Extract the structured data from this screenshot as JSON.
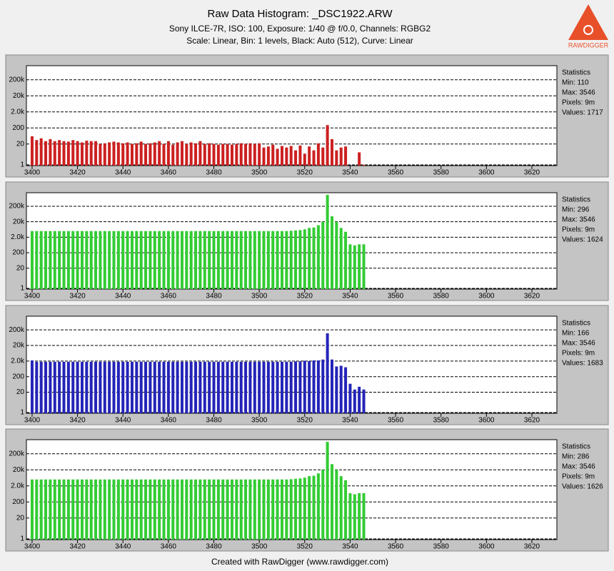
{
  "title": "Raw Data Histogram: _DSC1922.ARW",
  "subtitle": "Sony ILCE-7R, ISO: 100, Exposure: 1/40 @ f/0.0, Channels: RGBG2",
  "subtitle2": "Scale: Linear, Bin: 1 levels, Black: Auto (512), Curve: Linear",
  "footer": "Created with RawDigger (www.rawdigger.com)",
  "logo": "RAWDIGGER",
  "chart_data": [
    {
      "type": "bar",
      "log_y": true,
      "grid": true,
      "color": "#cc2020",
      "xlim": [
        3397.5,
        3631
      ],
      "xticks": [
        3400,
        3420,
        3440,
        3460,
        3480,
        3500,
        3520,
        3540,
        3560,
        3580,
        3600,
        3620
      ],
      "ylim": [
        0.9,
        1500000
      ],
      "yticks": [
        1,
        20,
        200,
        {
          "value": 2000,
          "label": "2.0k"
        },
        {
          "value": 20000,
          "label": "20k"
        },
        {
          "value": 200000,
          "label": "200k"
        }
      ],
      "stats": [
        "Statistics",
        "Min: 110",
        "Max: 3546",
        "Pixels: 9m",
        "Values: 1717"
      ],
      "x": [
        3400,
        3402,
        3404,
        3406,
        3408,
        3410,
        3412,
        3414,
        3416,
        3418,
        3420,
        3422,
        3424,
        3426,
        3428,
        3430,
        3432,
        3434,
        3436,
        3438,
        3440,
        3442,
        3444,
        3446,
        3448,
        3450,
        3452,
        3454,
        3456,
        3458,
        3460,
        3462,
        3464,
        3466,
        3468,
        3470,
        3472,
        3474,
        3476,
        3478,
        3480,
        3482,
        3484,
        3486,
        3488,
        3490,
        3492,
        3494,
        3496,
        3498,
        3500,
        3502,
        3504,
        3506,
        3508,
        3510,
        3512,
        3514,
        3516,
        3518,
        3520,
        3522,
        3524,
        3526,
        3528,
        3530,
        3532,
        3534,
        3536,
        3538,
        3544,
        3546
      ],
      "values": [
        60,
        35,
        45,
        30,
        40,
        30,
        35,
        30,
        28,
        35,
        30,
        25,
        32,
        30,
        30,
        20,
        22,
        25,
        28,
        25,
        22,
        25,
        20,
        22,
        28,
        20,
        22,
        25,
        30,
        20,
        30,
        18,
        25,
        30,
        20,
        25,
        22,
        30,
        20,
        22,
        20,
        18,
        20,
        20,
        18,
        20,
        22,
        20,
        22,
        20,
        22,
        12,
        14,
        18,
        10,
        15,
        12,
        15,
        8,
        16,
        5,
        14,
        8,
        22,
        12,
        300,
        40,
        8,
        12,
        14,
        6,
        1
      ]
    },
    {
      "type": "bar",
      "log_y": true,
      "grid": true,
      "color": "#33cc33",
      "xlim": [
        3397.5,
        3631
      ],
      "xticks": [
        3400,
        3420,
        3440,
        3460,
        3480,
        3500,
        3520,
        3540,
        3560,
        3580,
        3600,
        3620
      ],
      "ylim": [
        0.9,
        1500000
      ],
      "yticks": [
        1,
        20,
        200,
        {
          "value": 2000,
          "label": "2.0k"
        },
        {
          "value": 20000,
          "label": "20k"
        },
        {
          "value": 200000,
          "label": "200k"
        }
      ],
      "stats": [
        "Statistics",
        "Min: 296",
        "Max: 3546",
        "Pixels: 9m",
        "Values: 1624"
      ],
      "x": [
        3400,
        3402,
        3404,
        3406,
        3408,
        3410,
        3412,
        3414,
        3416,
        3418,
        3420,
        3422,
        3424,
        3426,
        3428,
        3430,
        3432,
        3434,
        3436,
        3438,
        3440,
        3442,
        3444,
        3446,
        3448,
        3450,
        3452,
        3454,
        3456,
        3458,
        3460,
        3462,
        3464,
        3466,
        3468,
        3470,
        3472,
        3474,
        3476,
        3478,
        3480,
        3482,
        3484,
        3486,
        3488,
        3490,
        3492,
        3494,
        3496,
        3498,
        3500,
        3502,
        3504,
        3506,
        3508,
        3510,
        3512,
        3514,
        3516,
        3518,
        3520,
        3522,
        3524,
        3526,
        3528,
        3530,
        3532,
        3534,
        3536,
        3538,
        3540,
        3542,
        3544,
        3546
      ],
      "values": [
        5000,
        5000,
        5000,
        5000,
        5000,
        5000,
        5000,
        5000,
        5000,
        5000,
        5000,
        5000,
        5000,
        5000,
        5000,
        5000,
        5000,
        5000,
        5000,
        5000,
        5000,
        5000,
        5000,
        5000,
        5000,
        5000,
        5000,
        5000,
        5000,
        5000,
        5000,
        5000,
        5000,
        5000,
        5000,
        5000,
        5000,
        5000,
        5000,
        5000,
        5000,
        5000,
        5000,
        5000,
        5000,
        5000,
        5000,
        5000,
        5000,
        5000,
        5000,
        5000,
        5000,
        5000,
        5000,
        5000,
        5000,
        5200,
        5500,
        5800,
        6500,
        8000,
        8500,
        12000,
        20000,
        1100000,
        45000,
        20000,
        8000,
        4500,
        700,
        600,
        700,
        700
      ]
    },
    {
      "type": "bar",
      "log_y": true,
      "grid": true,
      "color": "#2424b8",
      "xlim": [
        3397.5,
        3631
      ],
      "xticks": [
        3400,
        3420,
        3440,
        3460,
        3480,
        3500,
        3520,
        3540,
        3560,
        3580,
        3600,
        3620
      ],
      "ylim": [
        0.9,
        1500000
      ],
      "yticks": [
        1,
        20,
        200,
        {
          "value": 2000,
          "label": "2.0k"
        },
        {
          "value": 20000,
          "label": "20k"
        },
        {
          "value": 200000,
          "label": "200k"
        }
      ],
      "stats": [
        "Statistics",
        "Min: 166",
        "Max: 3546",
        "Pixels: 9m",
        "Values: 1683"
      ],
      "x": [
        3400,
        3402,
        3404,
        3406,
        3408,
        3410,
        3412,
        3414,
        3416,
        3418,
        3420,
        3422,
        3424,
        3426,
        3428,
        3430,
        3432,
        3434,
        3436,
        3438,
        3440,
        3442,
        3444,
        3446,
        3448,
        3450,
        3452,
        3454,
        3456,
        3458,
        3460,
        3462,
        3464,
        3466,
        3468,
        3470,
        3472,
        3474,
        3476,
        3478,
        3480,
        3482,
        3484,
        3486,
        3488,
        3490,
        3492,
        3494,
        3496,
        3498,
        3500,
        3502,
        3504,
        3506,
        3508,
        3510,
        3512,
        3514,
        3516,
        3518,
        3520,
        3522,
        3524,
        3526,
        3528,
        3530,
        3532,
        3534,
        3536,
        3538,
        3540,
        3542,
        3544,
        3546
      ],
      "values": [
        2200,
        1800,
        1800,
        1800,
        1800,
        1800,
        1800,
        1800,
        1800,
        1800,
        1800,
        1800,
        1800,
        1800,
        1800,
        1800,
        1800,
        1800,
        1800,
        1800,
        1800,
        1800,
        1800,
        1800,
        1800,
        1800,
        1800,
        1800,
        1800,
        1800,
        1800,
        1800,
        1800,
        1800,
        1800,
        1800,
        1800,
        1800,
        1800,
        1800,
        1800,
        1800,
        1800,
        1800,
        1800,
        1800,
        1800,
        1800,
        1800,
        1800,
        1800,
        1800,
        1800,
        1800,
        1800,
        1800,
        1800,
        1800,
        1900,
        1900,
        2100,
        2000,
        2200,
        2200,
        2500,
        120000,
        2500,
        900,
        1000,
        800,
        70,
        30,
        45,
        30
      ]
    },
    {
      "type": "bar",
      "log_y": true,
      "grid": true,
      "color": "#33cc33",
      "xlim": [
        3397.5,
        3631
      ],
      "xticks": [
        3400,
        3420,
        3440,
        3460,
        3480,
        3500,
        3520,
        3540,
        3560,
        3580,
        3600,
        3620
      ],
      "ylim": [
        0.9,
        1500000
      ],
      "yticks": [
        1,
        20,
        200,
        {
          "value": 2000,
          "label": "2.0k"
        },
        {
          "value": 20000,
          "label": "20k"
        },
        {
          "value": 200000,
          "label": "200k"
        }
      ],
      "stats": [
        "Statistics",
        "Min: 286",
        "Max: 3546",
        "Pixels: 9m",
        "Values: 1626"
      ],
      "x": [
        3400,
        3402,
        3404,
        3406,
        3408,
        3410,
        3412,
        3414,
        3416,
        3418,
        3420,
        3422,
        3424,
        3426,
        3428,
        3430,
        3432,
        3434,
        3436,
        3438,
        3440,
        3442,
        3444,
        3446,
        3448,
        3450,
        3452,
        3454,
        3456,
        3458,
        3460,
        3462,
        3464,
        3466,
        3468,
        3470,
        3472,
        3474,
        3476,
        3478,
        3480,
        3482,
        3484,
        3486,
        3488,
        3490,
        3492,
        3494,
        3496,
        3498,
        3500,
        3502,
        3504,
        3506,
        3508,
        3510,
        3512,
        3514,
        3516,
        3518,
        3520,
        3522,
        3524,
        3526,
        3528,
        3530,
        3532,
        3534,
        3536,
        3538,
        3540,
        3542,
        3544,
        3546
      ],
      "values": [
        5000,
        5000,
        5000,
        5000,
        5000,
        5000,
        5000,
        5000,
        5000,
        5000,
        5000,
        5000,
        5000,
        5000,
        5000,
        5000,
        5000,
        5000,
        5000,
        5000,
        5000,
        5000,
        5000,
        5000,
        5000,
        5000,
        5000,
        5000,
        5000,
        5000,
        5000,
        5000,
        5000,
        5000,
        5000,
        5000,
        5000,
        5000,
        5000,
        5000,
        5000,
        5000,
        5000,
        5000,
        5000,
        5000,
        5000,
        5000,
        5000,
        5000,
        5000,
        5000,
        5000,
        5000,
        5000,
        5000,
        5000,
        5200,
        5500,
        5800,
        6500,
        8000,
        8500,
        12000,
        20000,
        1100000,
        45000,
        20000,
        8000,
        4500,
        700,
        600,
        700,
        700
      ]
    }
  ]
}
